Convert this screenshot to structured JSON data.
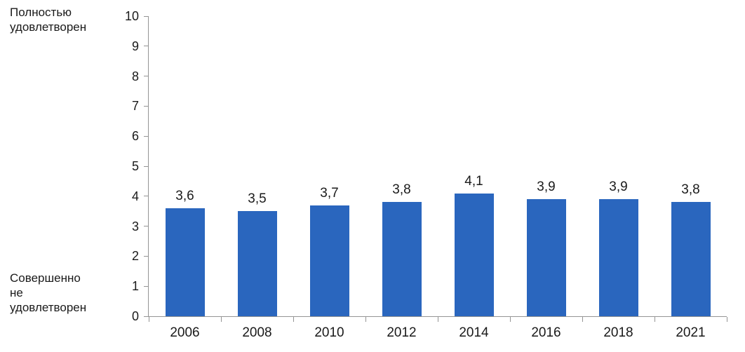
{
  "labels": {
    "y_top_lines": [
      "Полностью",
      "удовлетворен"
    ],
    "y_bottom_lines": [
      "Совершенно",
      "не",
      "удовлетворен"
    ]
  },
  "chart_data": {
    "type": "bar",
    "title": "",
    "xlabel": "",
    "ylabel_top": "Полностью удовлетворен",
    "ylabel_bottom": "Совершенно не удовлетворен",
    "categories": [
      "2006",
      "2008",
      "2010",
      "2012",
      "2014",
      "2016",
      "2018",
      "2021"
    ],
    "values": [
      3.6,
      3.5,
      3.7,
      3.8,
      4.1,
      3.9,
      3.9,
      3.8
    ],
    "value_labels": [
      "3,6",
      "3,5",
      "3,7",
      "3,8",
      "4,1",
      "3,9",
      "3,9",
      "3,8"
    ],
    "ylim": [
      0,
      10
    ],
    "yticks": [
      0,
      1,
      2,
      3,
      4,
      5,
      6,
      7,
      8,
      9,
      10
    ],
    "grid": false,
    "legend_position": "none",
    "bar_color": "#2a66be",
    "axis_color": "#949494",
    "label_color": "#1a1a1a"
  }
}
